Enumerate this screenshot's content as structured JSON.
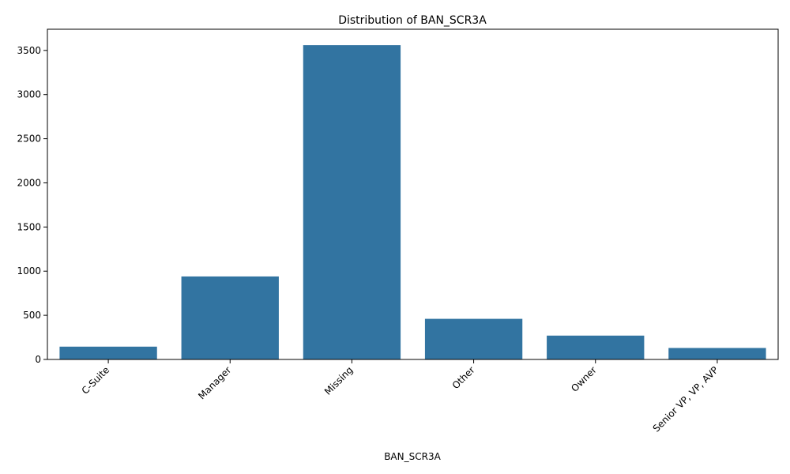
{
  "chart_data": {
    "type": "bar",
    "title": "Distribution of BAN_SCR3A",
    "xlabel": "BAN_SCR3A",
    "ylabel": "",
    "categories": [
      "C-Suite",
      "Manager",
      "Missing",
      "Other",
      "Owner",
      "Senior VP, VP, AVP"
    ],
    "values": [
      145,
      940,
      3560,
      460,
      270,
      130
    ],
    "ylim": [
      0,
      3740
    ],
    "yticks": [
      0,
      500,
      1000,
      1500,
      2000,
      2500,
      3000,
      3500
    ],
    "bar_color": "#3274a1",
    "grid": false,
    "legend": "none"
  }
}
